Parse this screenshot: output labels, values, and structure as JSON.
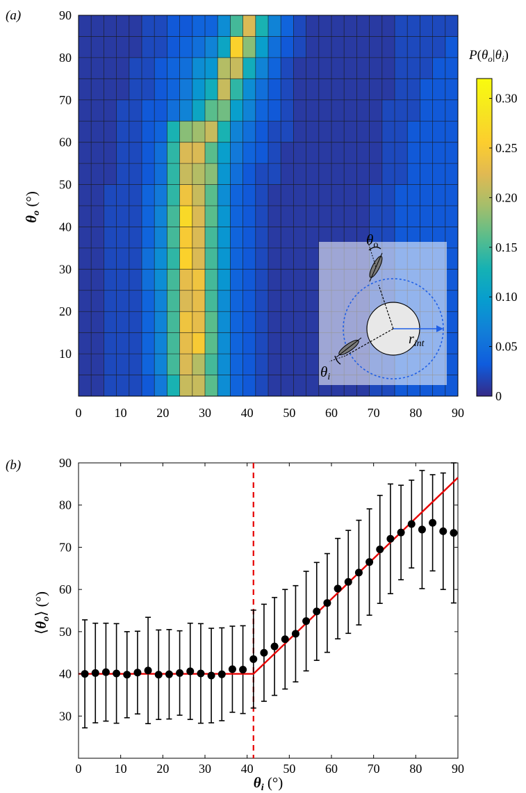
{
  "chart_data": [
    {
      "type": "heatmap",
      "panel_label": "(a)",
      "xlabel": "",
      "ylabel_main": "θ",
      "ylabel_sub": "o",
      "ylabel_unit": " (°)",
      "x_bins": [
        0,
        3,
        6,
        9,
        12,
        15,
        18,
        21,
        24,
        27,
        30,
        33,
        36,
        39,
        42,
        45,
        48,
        51,
        54,
        57,
        60,
        63,
        66,
        69,
        72,
        75,
        78,
        81,
        84,
        87,
        90
      ],
      "y_bins": [
        0,
        5,
        10,
        15,
        20,
        25,
        30,
        35,
        40,
        45,
        50,
        55,
        60,
        65,
        70,
        75,
        80,
        85,
        90
      ],
      "xlim": [
        0,
        90
      ],
      "ylim": [
        0,
        90
      ],
      "xticks": [
        0,
        10,
        20,
        30,
        40,
        50,
        60,
        70,
        80,
        90
      ],
      "yticks": [
        10,
        20,
        30,
        40,
        50,
        60,
        70,
        80,
        90
      ],
      "grid": true,
      "colorbar": {
        "label_P": "P",
        "label_open": "(",
        "label_theta1": "θ",
        "label_sub1": "o",
        "label_bar": "|",
        "label_theta2": "θ",
        "label_sub2": "i",
        "label_close": ")",
        "range": [
          0,
          0.32
        ],
        "ticks": [
          "0",
          "0.05",
          "0.10",
          "0.15",
          "0.20",
          "0.25",
          "0.30"
        ],
        "tick_values": [
          0,
          0.05,
          0.1,
          0.15,
          0.2,
          0.25,
          0.3
        ]
      },
      "inset": {
        "label_theta_o": "θ",
        "label_theta_o_sub": "o",
        "label_theta_i": "θ",
        "label_theta_i_sub": "i",
        "label_r": "r",
        "label_r_sub": "int",
        "ring_color": "#1f5fe6",
        "arrow_color": "#1f5fe6"
      },
      "values": [
        [
          0.01,
          0.01,
          0.01,
          0.01,
          0.01,
          0.01,
          0.01,
          0.01,
          0.01,
          0.01,
          0.01,
          0.01,
          0.01,
          0.01,
          0.01,
          0.01,
          0.01,
          0.01
        ],
        [
          0.01,
          0.01,
          0.01,
          0.01,
          0.01,
          0.01,
          0.01,
          0.01,
          0.01,
          0.01,
          0.01,
          0.01,
          0.01,
          0.01,
          0.01,
          0.01,
          0.01,
          0.01
        ],
        [
          0.02,
          0.02,
          0.02,
          0.02,
          0.02,
          0.02,
          0.02,
          0.02,
          0.02,
          0.02,
          0.01,
          0.01,
          0.01,
          0.01,
          0.01,
          0.01,
          0.01,
          0.01
        ],
        [
          0.02,
          0.02,
          0.02,
          0.02,
          0.02,
          0.02,
          0.02,
          0.02,
          0.02,
          0.02,
          0.02,
          0.02,
          0.02,
          0.02,
          0.01,
          0.01,
          0.01,
          0.01
        ],
        [
          0.02,
          0.02,
          0.02,
          0.02,
          0.02,
          0.02,
          0.02,
          0.02,
          0.02,
          0.02,
          0.02,
          0.02,
          0.02,
          0.02,
          0.02,
          0.02,
          0.01,
          0.01
        ],
        [
          0.03,
          0.04,
          0.04,
          0.04,
          0.04,
          0.05,
          0.05,
          0.04,
          0.04,
          0.04,
          0.03,
          0.03,
          0.03,
          0.03,
          0.02,
          0.02,
          0.02,
          0.02
        ],
        [
          0.06,
          0.07,
          0.07,
          0.07,
          0.07,
          0.08,
          0.08,
          0.07,
          0.07,
          0.06,
          0.05,
          0.05,
          0.04,
          0.03,
          0.03,
          0.03,
          0.02,
          0.02
        ],
        [
          0.13,
          0.15,
          0.15,
          0.15,
          0.15,
          0.15,
          0.14,
          0.15,
          0.15,
          0.14,
          0.14,
          0.14,
          0.13,
          0.05,
          0.04,
          0.04,
          0.03,
          0.03
        ],
        [
          0.21,
          0.22,
          0.23,
          0.24,
          0.22,
          0.23,
          0.26,
          0.25,
          0.27,
          0.24,
          0.21,
          0.22,
          0.18,
          0.07,
          0.06,
          0.05,
          0.04,
          0.03
        ],
        [
          0.21,
          0.2,
          0.25,
          0.23,
          0.23,
          0.24,
          0.22,
          0.22,
          0.22,
          0.21,
          0.2,
          0.22,
          0.19,
          0.11,
          0.09,
          0.08,
          0.05,
          0.04
        ],
        [
          0.16,
          0.15,
          0.16,
          0.16,
          0.15,
          0.15,
          0.15,
          0.15,
          0.16,
          0.16,
          0.18,
          0.16,
          0.21,
          0.16,
          0.12,
          0.09,
          0.07,
          0.04
        ],
        [
          0.08,
          0.08,
          0.08,
          0.08,
          0.08,
          0.09,
          0.09,
          0.09,
          0.09,
          0.08,
          0.09,
          0.1,
          0.13,
          0.17,
          0.21,
          0.2,
          0.11,
          0.08
        ],
        [
          0.04,
          0.04,
          0.04,
          0.04,
          0.04,
          0.04,
          0.04,
          0.04,
          0.04,
          0.04,
          0.05,
          0.06,
          0.07,
          0.1,
          0.14,
          0.21,
          0.26,
          0.15
        ],
        [
          0.03,
          0.03,
          0.03,
          0.03,
          0.03,
          0.03,
          0.03,
          0.03,
          0.03,
          0.03,
          0.03,
          0.04,
          0.05,
          0.07,
          0.08,
          0.12,
          0.18,
          0.22
        ],
        [
          0.02,
          0.02,
          0.02,
          0.02,
          0.02,
          0.02,
          0.02,
          0.02,
          0.02,
          0.02,
          0.02,
          0.03,
          0.03,
          0.04,
          0.05,
          0.07,
          0.1,
          0.13
        ],
        [
          0.01,
          0.01,
          0.01,
          0.01,
          0.01,
          0.01,
          0.01,
          0.01,
          0.01,
          0.01,
          0.02,
          0.02,
          0.02,
          0.03,
          0.03,
          0.04,
          0.05,
          0.07
        ],
        [
          0.01,
          0.01,
          0.01,
          0.01,
          0.01,
          0.01,
          0.01,
          0.01,
          0.01,
          0.01,
          0.01,
          0.01,
          0.02,
          0.02,
          0.02,
          0.02,
          0.03,
          0.04
        ],
        [
          0.01,
          0.01,
          0.01,
          0.01,
          0.01,
          0.01,
          0.01,
          0.01,
          0.01,
          0.01,
          0.01,
          0.01,
          0.01,
          0.01,
          0.01,
          0.01,
          0.02,
          0.02
        ],
        [
          0.01,
          0.01,
          0.01,
          0.01,
          0.01,
          0.01,
          0.01,
          0.01,
          0.01,
          0.01,
          0.01,
          0.01,
          0.01,
          0.01,
          0.01,
          0.01,
          0.01,
          0.01
        ],
        [
          0.01,
          0.01,
          0.01,
          0.01,
          0.01,
          0.01,
          0.01,
          0.01,
          0.01,
          0.01,
          0.01,
          0.01,
          0.01,
          0.01,
          0.01,
          0.01,
          0.01,
          0.01
        ],
        [
          0.01,
          0.01,
          0.01,
          0.01,
          0.01,
          0.01,
          0.01,
          0.01,
          0.01,
          0.01,
          0.01,
          0.01,
          0.01,
          0.01,
          0.01,
          0.01,
          0.01,
          0.01
        ],
        [
          0.01,
          0.01,
          0.01,
          0.01,
          0.01,
          0.01,
          0.01,
          0.01,
          0.01,
          0.01,
          0.01,
          0.01,
          0.01,
          0.01,
          0.01,
          0.01,
          0.01,
          0.01
        ],
        [
          0.01,
          0.01,
          0.01,
          0.01,
          0.01,
          0.01,
          0.01,
          0.01,
          0.01,
          0.01,
          0.01,
          0.01,
          0.01,
          0.01,
          0.01,
          0.01,
          0.01,
          0.01
        ],
        [
          0.02,
          0.02,
          0.02,
          0.02,
          0.02,
          0.02,
          0.02,
          0.02,
          0.02,
          0.02,
          0.01,
          0.01,
          0.01,
          0.01,
          0.01,
          0.01,
          0.01,
          0.01
        ],
        [
          0.02,
          0.02,
          0.02,
          0.02,
          0.02,
          0.02,
          0.02,
          0.02,
          0.02,
          0.02,
          0.02,
          0.02,
          0.02,
          0.02,
          0.01,
          0.01,
          0.01,
          0.01
        ],
        [
          0.03,
          0.03,
          0.03,
          0.03,
          0.03,
          0.03,
          0.03,
          0.03,
          0.03,
          0.03,
          0.02,
          0.02,
          0.02,
          0.02,
          0.02,
          0.02,
          0.02,
          0.02
        ],
        [
          0.03,
          0.03,
          0.03,
          0.03,
          0.03,
          0.03,
          0.03,
          0.03,
          0.03,
          0.03,
          0.03,
          0.03,
          0.03,
          0.02,
          0.02,
          0.02,
          0.02,
          0.02
        ],
        [
          0.03,
          0.03,
          0.03,
          0.03,
          0.03,
          0.03,
          0.03,
          0.03,
          0.03,
          0.03,
          0.03,
          0.03,
          0.03,
          0.03,
          0.03,
          0.02,
          0.02,
          0.02
        ],
        [
          0.03,
          0.03,
          0.03,
          0.03,
          0.03,
          0.03,
          0.03,
          0.03,
          0.03,
          0.03,
          0.03,
          0.03,
          0.03,
          0.03,
          0.03,
          0.03,
          0.02,
          0.02
        ],
        [
          0.03,
          0.03,
          0.03,
          0.03,
          0.03,
          0.03,
          0.03,
          0.03,
          0.03,
          0.03,
          0.03,
          0.03,
          0.03,
          0.03,
          0.03,
          0.03,
          0.03,
          0.02
        ]
      ]
    },
    {
      "type": "scatter",
      "panel_label": "(b)",
      "xlabel_main": "θ",
      "xlabel_sub": "i",
      "xlabel_unit": " (°)",
      "ylabel_open": "⟨",
      "ylabel_main": "θ",
      "ylabel_sub": "o",
      "ylabel_close": "⟩",
      "ylabel_unit": " (°)",
      "xlim": [
        0,
        90
      ],
      "ylim": [
        20,
        90
      ],
      "xticks": [
        0,
        10,
        20,
        30,
        40,
        50,
        60,
        70,
        80,
        90
      ],
      "yticks": [
        30,
        40,
        50,
        60,
        70,
        80,
        90
      ],
      "grid": false,
      "x": [
        1.5,
        4,
        6.5,
        9,
        11.5,
        14,
        16.5,
        19,
        21.5,
        24,
        26.5,
        29,
        31.5,
        34,
        36.5,
        39,
        41.5,
        44,
        46.5,
        49,
        51.5,
        54,
        56.5,
        59,
        61.5,
        64,
        66.5,
        69,
        71.5,
        74,
        76.5,
        79,
        81.5,
        84,
        86.5,
        89
      ],
      "y": [
        40,
        40.2,
        40.4,
        40.1,
        39.8,
        40.3,
        40.8,
        39.8,
        39.9,
        40.2,
        40.6,
        40.1,
        39.6,
        39.9,
        41.1,
        41,
        43.5,
        45,
        46.5,
        48.2,
        49.5,
        52.5,
        54.8,
        56.8,
        60.2,
        61.8,
        64,
        66.5,
        69.5,
        72,
        73.5,
        75.5,
        74.2,
        75.8,
        73.8,
        73.4
      ],
      "yerr": [
        12.8,
        11.8,
        11.6,
        11.8,
        10.2,
        9.8,
        12.6,
        10.6,
        10.6,
        10,
        11.4,
        11.8,
        11.2,
        11,
        10.2,
        10.4,
        11.6,
        11.5,
        11.6,
        11.8,
        11.4,
        11.8,
        11.6,
        11.7,
        11.9,
        12.2,
        12.4,
        12.6,
        12.8,
        13,
        11.2,
        10.4,
        14,
        11.4,
        13.8,
        16.6
      ],
      "fit": [
        [
          0,
          40
        ],
        [
          41.5,
          40
        ],
        [
          90,
          86.5
        ]
      ],
      "vline_x": 41.5,
      "marker_color": "#000000",
      "fit_color": "#e60000",
      "vline_color": "#e60000"
    }
  ]
}
